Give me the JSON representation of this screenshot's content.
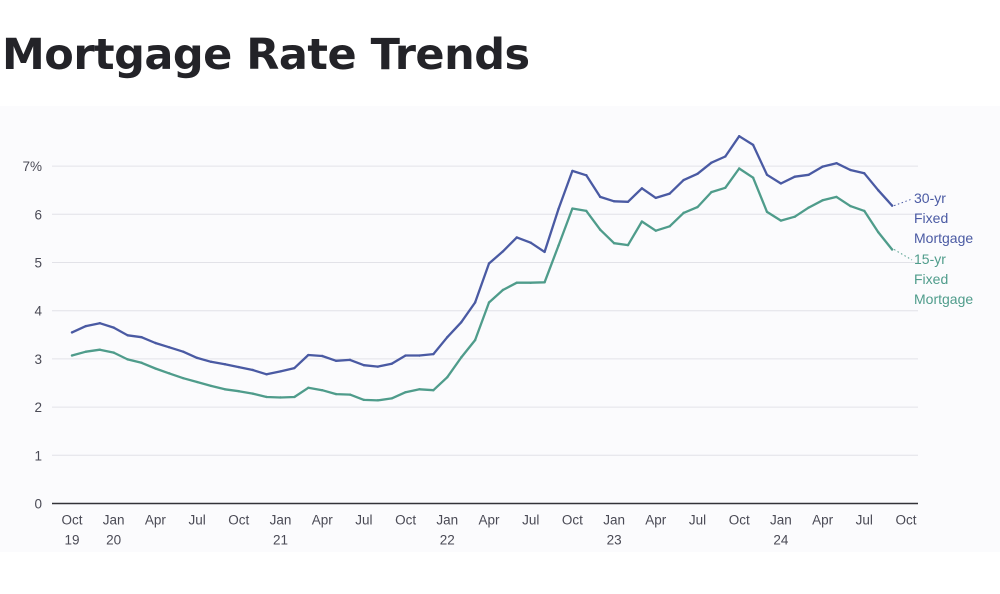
{
  "page": {
    "title": "Mortgage Rate Trends"
  },
  "chart_data": {
    "type": "line",
    "title": "",
    "xlabel": "",
    "ylabel": "",
    "ylim": [
      0,
      7
    ],
    "grid": true,
    "legend_placement": "inline-right",
    "y_ticks": [
      {
        "value": 0,
        "label": "0"
      },
      {
        "value": 1,
        "label": "1"
      },
      {
        "value": 2,
        "label": "2"
      },
      {
        "value": 3,
        "label": "3"
      },
      {
        "value": 4,
        "label": "4"
      },
      {
        "value": 5,
        "label": "5"
      },
      {
        "value": 6,
        "label": "6"
      },
      {
        "value": 7,
        "label": "7%"
      }
    ],
    "x_ticks": [
      {
        "month": "2019-10",
        "label": "Oct",
        "year": "19"
      },
      {
        "month": "2020-01",
        "label": "Jan",
        "year": "20"
      },
      {
        "month": "2020-04",
        "label": "Apr",
        "year": ""
      },
      {
        "month": "2020-07",
        "label": "Jul",
        "year": ""
      },
      {
        "month": "2020-10",
        "label": "Oct",
        "year": ""
      },
      {
        "month": "2021-01",
        "label": "Jan",
        "year": "21"
      },
      {
        "month": "2021-04",
        "label": "Apr",
        "year": ""
      },
      {
        "month": "2021-07",
        "label": "Jul",
        "year": ""
      },
      {
        "month": "2021-10",
        "label": "Oct",
        "year": ""
      },
      {
        "month": "2022-01",
        "label": "Jan",
        "year": "22"
      },
      {
        "month": "2022-04",
        "label": "Apr",
        "year": ""
      },
      {
        "month": "2022-07",
        "label": "Jul",
        "year": ""
      },
      {
        "month": "2022-10",
        "label": "Oct",
        "year": ""
      },
      {
        "month": "2023-01",
        "label": "Jan",
        "year": "23"
      },
      {
        "month": "2023-04",
        "label": "Apr",
        "year": ""
      },
      {
        "month": "2023-07",
        "label": "Jul",
        "year": ""
      },
      {
        "month": "2023-10",
        "label": "Oct",
        "year": ""
      },
      {
        "month": "2024-01",
        "label": "Jan",
        "year": "24"
      },
      {
        "month": "2024-04",
        "label": "Apr",
        "year": ""
      },
      {
        "month": "2024-07",
        "label": "Jul",
        "year": ""
      },
      {
        "month": "2024-10",
        "label": "Oct",
        "year": ""
      }
    ],
    "series": [
      {
        "name": "30-yr Fixed Mortgage",
        "label_lines": [
          "30-yr",
          "Fixed",
          "Mortgage"
        ],
        "color": "#4a5aa3",
        "points": [
          [
            "2019-10",
            3.55
          ],
          [
            "2019-11",
            3.68
          ],
          [
            "2019-12",
            3.74
          ],
          [
            "2020-01",
            3.65
          ],
          [
            "2020-02",
            3.49
          ],
          [
            "2020-03",
            3.45
          ],
          [
            "2020-04",
            3.33
          ],
          [
            "2020-05",
            3.24
          ],
          [
            "2020-06",
            3.15
          ],
          [
            "2020-07",
            3.02
          ],
          [
            "2020-08",
            2.94
          ],
          [
            "2020-09",
            2.89
          ],
          [
            "2020-10",
            2.83
          ],
          [
            "2020-11",
            2.77
          ],
          [
            "2020-12",
            2.68
          ],
          [
            "2021-01",
            2.74
          ],
          [
            "2021-02",
            2.81
          ],
          [
            "2021-03",
            3.08
          ],
          [
            "2021-04",
            3.06
          ],
          [
            "2021-05",
            2.96
          ],
          [
            "2021-06",
            2.98
          ],
          [
            "2021-07",
            2.87
          ],
          [
            "2021-08",
            2.84
          ],
          [
            "2021-09",
            2.9
          ],
          [
            "2021-10",
            3.07
          ],
          [
            "2021-11",
            3.07
          ],
          [
            "2021-12",
            3.1
          ],
          [
            "2022-01",
            3.45
          ],
          [
            "2022-02",
            3.76
          ],
          [
            "2022-03",
            4.17
          ],
          [
            "2022-04",
            4.98
          ],
          [
            "2022-05",
            5.23
          ],
          [
            "2022-06",
            5.52
          ],
          [
            "2022-07",
            5.41
          ],
          [
            "2022-08",
            5.22
          ],
          [
            "2022-09",
            6.11
          ],
          [
            "2022-10",
            6.9
          ],
          [
            "2022-11",
            6.81
          ],
          [
            "2022-12",
            6.36
          ],
          [
            "2023-01",
            6.27
          ],
          [
            "2023-02",
            6.26
          ],
          [
            "2023-03",
            6.54
          ],
          [
            "2023-04",
            6.34
          ],
          [
            "2023-05",
            6.43
          ],
          [
            "2023-06",
            6.71
          ],
          [
            "2023-07",
            6.84
          ],
          [
            "2023-08",
            7.07
          ],
          [
            "2023-09",
            7.2
          ],
          [
            "2023-10",
            7.62
          ],
          [
            "2023-11",
            7.44
          ],
          [
            "2023-12",
            6.82
          ],
          [
            "2024-01",
            6.64
          ],
          [
            "2024-02",
            6.78
          ],
          [
            "2024-03",
            6.82
          ],
          [
            "2024-04",
            6.99
          ],
          [
            "2024-05",
            7.06
          ],
          [
            "2024-06",
            6.92
          ],
          [
            "2024-07",
            6.85
          ],
          [
            "2024-08",
            6.5
          ],
          [
            "2024-09",
            6.18
          ]
        ]
      },
      {
        "name": "15-yr Fixed Mortgage",
        "label_lines": [
          "15-yr",
          "Fixed",
          "Mortgage"
        ],
        "color": "#4f9c8b",
        "points": [
          [
            "2019-10",
            3.07
          ],
          [
            "2019-11",
            3.15
          ],
          [
            "2019-12",
            3.19
          ],
          [
            "2020-01",
            3.13
          ],
          [
            "2020-02",
            2.99
          ],
          [
            "2020-03",
            2.92
          ],
          [
            "2020-04",
            2.8
          ],
          [
            "2020-05",
            2.7
          ],
          [
            "2020-06",
            2.6
          ],
          [
            "2020-07",
            2.52
          ],
          [
            "2020-08",
            2.44
          ],
          [
            "2020-09",
            2.37
          ],
          [
            "2020-10",
            2.33
          ],
          [
            "2020-11",
            2.28
          ],
          [
            "2020-12",
            2.21
          ],
          [
            "2021-01",
            2.2
          ],
          [
            "2021-02",
            2.21
          ],
          [
            "2021-03",
            2.4
          ],
          [
            "2021-04",
            2.35
          ],
          [
            "2021-05",
            2.27
          ],
          [
            "2021-06",
            2.26
          ],
          [
            "2021-07",
            2.15
          ],
          [
            "2021-08",
            2.14
          ],
          [
            "2021-09",
            2.18
          ],
          [
            "2021-10",
            2.31
          ],
          [
            "2021-11",
            2.37
          ],
          [
            "2021-12",
            2.35
          ],
          [
            "2022-01",
            2.62
          ],
          [
            "2022-02",
            3.03
          ],
          [
            "2022-03",
            3.39
          ],
          [
            "2022-04",
            4.17
          ],
          [
            "2022-05",
            4.43
          ],
          [
            "2022-06",
            4.58
          ],
          [
            "2022-07",
            4.58
          ],
          [
            "2022-08",
            4.59
          ],
          [
            "2022-09",
            5.35
          ],
          [
            "2022-10",
            6.12
          ],
          [
            "2022-11",
            6.07
          ],
          [
            "2022-12",
            5.68
          ],
          [
            "2023-01",
            5.4
          ],
          [
            "2023-02",
            5.36
          ],
          [
            "2023-03",
            5.85
          ],
          [
            "2023-04",
            5.66
          ],
          [
            "2023-05",
            5.75
          ],
          [
            "2023-06",
            6.03
          ],
          [
            "2023-07",
            6.15
          ],
          [
            "2023-08",
            6.46
          ],
          [
            "2023-09",
            6.55
          ],
          [
            "2023-10",
            6.95
          ],
          [
            "2023-11",
            6.76
          ],
          [
            "2023-12",
            6.05
          ],
          [
            "2024-01",
            5.87
          ],
          [
            "2024-02",
            5.95
          ],
          [
            "2024-03",
            6.14
          ],
          [
            "2024-04",
            6.29
          ],
          [
            "2024-05",
            6.36
          ],
          [
            "2024-06",
            6.17
          ],
          [
            "2024-07",
            6.07
          ],
          [
            "2024-08",
            5.63
          ],
          [
            "2024-09",
            5.27
          ]
        ]
      }
    ]
  }
}
